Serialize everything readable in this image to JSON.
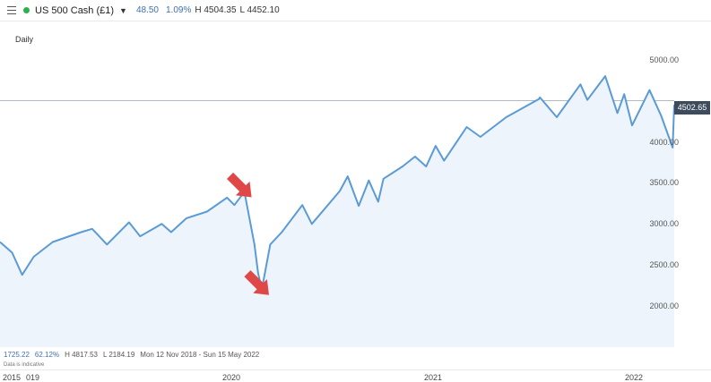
{
  "header": {
    "menu_icon": "hamburger-menu-icon",
    "status_color": "#2bb24c",
    "instrument": "US 500 Cash (£1)",
    "change": "48.50",
    "change_pct": "1.09%",
    "high": "H 4504.35",
    "low": "L 4452.10"
  },
  "timeframe": "Daily",
  "current_price": "4502.65",
  "stats": {
    "change": "1725.22",
    "change_pct": "62.12%",
    "high": "H 4817.53",
    "low": "L 2184.19",
    "range": "Mon 12 Nov 2018 - Sun 15 May 2022"
  },
  "disclaimer": "Data is indicative",
  "x_axis": {
    "start_year": "2015",
    "partial": "019",
    "labels": [
      "2020",
      "2021",
      "2022"
    ]
  },
  "colors": {
    "line": "#5b9bd5",
    "fill": "#eef4fb",
    "arrow": "#e04848",
    "badge": "#3d4b5c"
  },
  "chart_data": {
    "type": "area",
    "ylim": [
      1500,
      5400
    ],
    "y_ticks": [
      2000,
      2500,
      3000,
      3500,
      4000,
      4500,
      5000
    ],
    "y_tick_labels": [
      "2000.00",
      "2500.00",
      "3000.00",
      "3500.00",
      "4000.00",
      "",
      "5000.00"
    ],
    "x_range": [
      "2018-11-12",
      "2022-05-15"
    ],
    "x": [
      "2018-11-12",
      "2018-12-05",
      "2018-12-24",
      "2019-01-15",
      "2019-02-20",
      "2019-04-15",
      "2019-05-06",
      "2019-06-03",
      "2019-07-15",
      "2019-08-05",
      "2019-09-15",
      "2019-10-03",
      "2019-11-01",
      "2019-12-10",
      "2020-01-17",
      "2020-01-31",
      "2020-02-19",
      "2020-03-09",
      "2020-03-16",
      "2020-03-23",
      "2020-04-08",
      "2020-04-30",
      "2020-06-08",
      "2020-06-26",
      "2020-08-18",
      "2020-09-02",
      "2020-09-23",
      "2020-10-12",
      "2020-10-30",
      "2020-11-09",
      "2020-12-15",
      "2021-01-08",
      "2021-01-29",
      "2021-02-16",
      "2021-03-04",
      "2021-04-16",
      "2021-05-12",
      "2021-06-30",
      "2021-08-31",
      "2021-09-02",
      "2021-10-04",
      "2021-11-18",
      "2021-12-01",
      "2022-01-04",
      "2022-01-27",
      "2022-02-09",
      "2022-02-24",
      "2022-03-29",
      "2022-04-20",
      "2022-05-12",
      "2022-05-15"
    ],
    "values": [
      2780,
      2650,
      2380,
      2600,
      2780,
      2900,
      2940,
      2750,
      3020,
      2850,
      3000,
      2900,
      3070,
      3150,
      3320,
      3230,
      3390,
      2750,
      2400,
      2200,
      2750,
      2900,
      3230,
      3000,
      3400,
      3580,
      3220,
      3530,
      3270,
      3550,
      3700,
      3820,
      3700,
      3950,
      3770,
      4180,
      4060,
      4300,
      4520,
      4540,
      4300,
      4700,
      4510,
      4800,
      4350,
      4580,
      4200,
      4630,
      4320,
      3930,
      4450
    ],
    "annotations": [
      {
        "type": "arrow",
        "at": "2020-02-19"
      },
      {
        "type": "arrow",
        "at": "2020-03-23"
      }
    ]
  }
}
